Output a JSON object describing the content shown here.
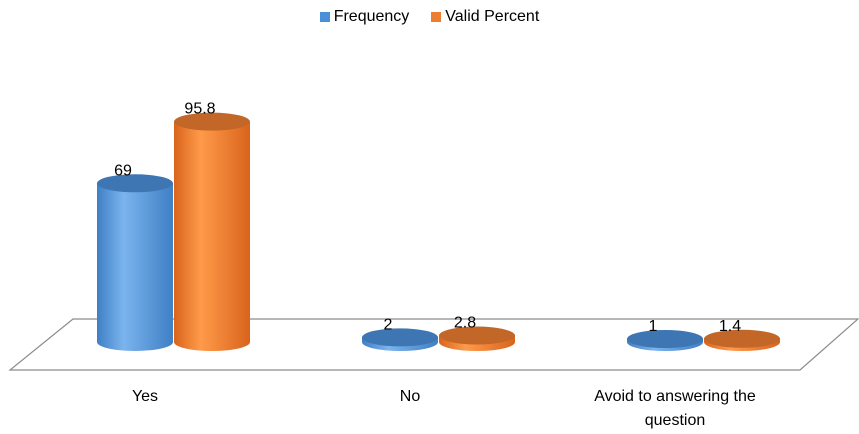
{
  "chart_data": {
    "type": "bar",
    "style": "3d-cylinder",
    "categories": [
      "Yes",
      "No",
      "Avoid to answering  the question"
    ],
    "series": [
      {
        "name": "Frequency",
        "values": [
          69,
          2,
          1
        ],
        "color": "#4A90D9"
      },
      {
        "name": "Valid Percent",
        "values": [
          95.8,
          2.8,
          1.4
        ],
        "color": "#ED7D31"
      }
    ],
    "ylim": [
      0,
      100
    ],
    "grid": false,
    "legend_position": "top"
  }
}
